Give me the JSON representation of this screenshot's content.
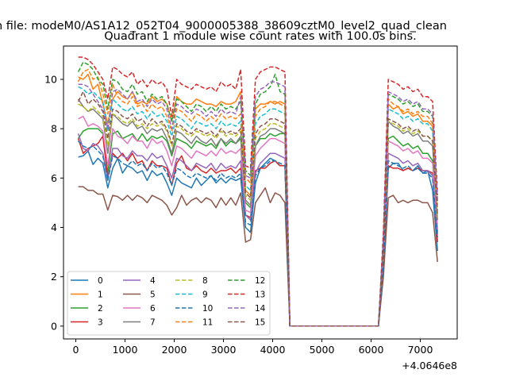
{
  "chart_data": {
    "type": "line",
    "suptitle": "n file: modeM0/AS1A12_052T04_9000005388_38609cztM0_level2_quad_clean",
    "title": "Quadrant 1 module wise count rates with 100.0s bins.",
    "x_offset_label": "+4.0646e8",
    "xlim": [
      -250,
      7750
    ],
    "ylim": [
      -0.52,
      11.35
    ],
    "x_ticks": [
      0,
      1000,
      2000,
      3000,
      4000,
      5000,
      6000,
      7000
    ],
    "x_tick_labels": [
      "0",
      "1000",
      "2000",
      "3000",
      "4000",
      "5000",
      "6000",
      "7000"
    ],
    "y_ticks": [
      0,
      2,
      4,
      6,
      8,
      10
    ],
    "y_tick_labels": [
      "0",
      "2",
      "4",
      "6",
      "8",
      "10"
    ],
    "x": [
      50,
      150,
      250,
      350,
      450,
      550,
      650,
      750,
      850,
      950,
      1050,
      1150,
      1250,
      1350,
      1450,
      1550,
      1650,
      1750,
      1850,
      1950,
      2050,
      2150,
      2250,
      2350,
      2450,
      2550,
      2650,
      2750,
      2850,
      2950,
      3050,
      3150,
      3250,
      3350,
      3450,
      3550,
      3650,
      3750,
      3850,
      3950,
      4050,
      4150,
      4250,
      4350,
      6150,
      6250,
      6350,
      6450,
      6550,
      6650,
      6750,
      6850,
      6950,
      7050,
      7150,
      7250,
      7350
    ],
    "legend": {
      "location": "lower left",
      "columns": 4
    },
    "series": [
      {
        "name": "0",
        "color": "#1f77b4",
        "style": "solid",
        "values": [
          6.85,
          6.9,
          7.1,
          6.55,
          6.8,
          6.6,
          5.6,
          6.4,
          6.8,
          6.2,
          6.5,
          6.4,
          6.2,
          6.3,
          5.9,
          6.3,
          6.1,
          6.2,
          5.8,
          5.3,
          6.0,
          5.8,
          5.7,
          5.6,
          6.0,
          5.7,
          5.9,
          6.1,
          5.8,
          6.0,
          5.8,
          6.0,
          5.9,
          6.0,
          4.0,
          3.8,
          5.8,
          6.4,
          6.6,
          6.8,
          6.7,
          6.5,
          6.5,
          0.0,
          0.0,
          2.4,
          6.4,
          6.6,
          6.6,
          6.3,
          6.4,
          6.3,
          6.5,
          6.2,
          6.3,
          5.5,
          3.05
        ]
      },
      {
        "name": "1",
        "color": "#ff7f0e",
        "style": "solid",
        "values": [
          10.1,
          10.0,
          10.2,
          9.6,
          9.8,
          9.0,
          8.2,
          9.2,
          9.5,
          9.3,
          9.2,
          9.5,
          9.0,
          9.1,
          9.0,
          9.3,
          9.1,
          9.2,
          9.0,
          8.3,
          9.3,
          9.1,
          9.0,
          9.0,
          9.2,
          9.1,
          9.0,
          9.0,
          8.9,
          9.1,
          9.0,
          9.0,
          9.1,
          9.5,
          5.5,
          5.3,
          8.8,
          9.0,
          9.0,
          9.1,
          9.0,
          9.1,
          9.0,
          0.0,
          0.0,
          3.0,
          9.0,
          8.8,
          8.9,
          8.6,
          8.7,
          8.5,
          8.6,
          8.3,
          8.3,
          8.1,
          3.9
        ]
      },
      {
        "name": "2",
        "color": "#2ca02c",
        "style": "solid",
        "values": [
          7.6,
          7.9,
          8.0,
          8.0,
          8.0,
          7.8,
          6.2,
          7.8,
          7.9,
          7.6,
          7.7,
          7.8,
          7.5,
          7.8,
          7.5,
          7.7,
          7.6,
          7.7,
          7.5,
          6.9,
          7.6,
          7.5,
          7.4,
          7.2,
          7.5,
          7.4,
          7.3,
          7.4,
          7.2,
          7.6,
          7.3,
          7.5,
          7.4,
          7.6,
          5.0,
          4.8,
          7.3,
          7.6,
          7.6,
          7.8,
          7.7,
          7.8,
          7.8,
          0.0,
          0.0,
          2.9,
          7.6,
          7.7,
          7.5,
          7.3,
          7.4,
          7.2,
          7.3,
          7.0,
          7.0,
          6.7,
          3.8
        ]
      },
      {
        "name": "3",
        "color": "#d62728",
        "style": "solid",
        "values": [
          7.6,
          7.0,
          7.2,
          7.3,
          7.4,
          7.7,
          6.0,
          7.0,
          6.8,
          7.0,
          6.7,
          7.0,
          6.6,
          6.7,
          6.3,
          6.7,
          6.5,
          6.5,
          6.4,
          5.7,
          6.6,
          6.9,
          6.4,
          6.3,
          6.5,
          6.3,
          6.2,
          6.4,
          6.2,
          6.3,
          6.3,
          6.4,
          6.2,
          6.4,
          4.5,
          4.4,
          6.3,
          6.4,
          6.4,
          6.6,
          6.7,
          6.5,
          6.5,
          0.0,
          0.0,
          2.5,
          6.5,
          6.4,
          6.4,
          6.3,
          6.4,
          6.3,
          6.4,
          6.3,
          6.3,
          6.2,
          3.4
        ]
      },
      {
        "name": "4",
        "color": "#9467bd",
        "style": "solid",
        "values": [
          7.8,
          7.2,
          7.1,
          7.4,
          7.3,
          7.0,
          5.9,
          7.2,
          7.2,
          6.9,
          6.8,
          7.1,
          6.9,
          6.9,
          6.7,
          7.0,
          6.8,
          6.9,
          6.5,
          6.0,
          6.8,
          6.7,
          6.5,
          6.3,
          6.6,
          6.5,
          6.4,
          6.6,
          6.3,
          6.6,
          6.4,
          6.5,
          6.4,
          6.7,
          4.5,
          4.3,
          6.2,
          6.6,
          6.8,
          7.0,
          7.0,
          6.9,
          6.8,
          0.0,
          0.0,
          2.7,
          7.0,
          6.9,
          6.8,
          6.6,
          6.7,
          6.5,
          6.6,
          6.3,
          6.3,
          6.1,
          3.7
        ]
      },
      {
        "name": "5",
        "color": "#8c564b",
        "style": "solid",
        "values": [
          5.65,
          5.65,
          5.5,
          5.5,
          5.35,
          5.35,
          4.7,
          5.3,
          5.25,
          5.1,
          5.3,
          5.1,
          5.3,
          5.2,
          5.0,
          5.3,
          5.2,
          5.1,
          4.9,
          4.5,
          4.8,
          5.3,
          4.9,
          5.1,
          5.2,
          5.0,
          5.2,
          5.1,
          4.8,
          5.2,
          4.9,
          5.2,
          4.9,
          5.4,
          3.4,
          3.5,
          5.0,
          5.3,
          5.6,
          5.0,
          5.4,
          5.3,
          5.0,
          0.0,
          0.0,
          2.0,
          5.2,
          5.3,
          5.0,
          5.1,
          5.0,
          5.1,
          5.1,
          5.0,
          5.0,
          4.6,
          2.6
        ]
      },
      {
        "name": "6",
        "color": "#e377c2",
        "style": "solid",
        "values": [
          8.4,
          8.5,
          8.1,
          8.2,
          8.1,
          7.9,
          6.5,
          8.0,
          7.7,
          7.6,
          7.4,
          7.7,
          7.5,
          7.5,
          7.2,
          7.6,
          7.4,
          7.5,
          7.1,
          6.5,
          7.3,
          7.2,
          7.0,
          6.8,
          7.1,
          7.0,
          6.9,
          7.1,
          6.9,
          7.2,
          7.0,
          7.1,
          7.0,
          7.2,
          4.7,
          4.6,
          6.9,
          7.2,
          7.4,
          7.6,
          7.6,
          7.5,
          7.4,
          0.0,
          0.0,
          2.8,
          7.5,
          7.4,
          7.3,
          7.1,
          7.2,
          7.0,
          7.1,
          6.8,
          6.8,
          6.6,
          3.9
        ]
      },
      {
        "name": "7",
        "color": "#7f7f7f",
        "style": "solid",
        "values": [
          9.2,
          8.9,
          8.7,
          8.8,
          8.6,
          8.4,
          7.0,
          8.6,
          8.4,
          8.2,
          8.1,
          8.3,
          8.0,
          8.1,
          7.8,
          8.0,
          7.9,
          8.0,
          7.6,
          7.0,
          7.9,
          7.8,
          7.6,
          7.4,
          7.7,
          7.5,
          7.4,
          7.6,
          7.3,
          7.6,
          7.4,
          7.6,
          7.4,
          7.7,
          5.1,
          4.9,
          7.3,
          7.7,
          7.8,
          8.0,
          8.0,
          7.9,
          7.8,
          0.0,
          0.0,
          3.0,
          8.3,
          8.1,
          8.0,
          7.8,
          7.9,
          7.7,
          7.8,
          7.5,
          7.5,
          7.3,
          4.3
        ]
      },
      {
        "name": "8",
        "color": "#bcbd22",
        "style": "dashed",
        "values": [
          9.0,
          8.9,
          8.7,
          8.9,
          8.7,
          8.5,
          7.3,
          8.6,
          8.5,
          8.3,
          8.2,
          8.4,
          8.1,
          8.2,
          8.0,
          8.2,
          8.1,
          8.2,
          7.9,
          7.3,
          8.1,
          8.0,
          7.8,
          7.7,
          7.9,
          7.8,
          7.7,
          7.8,
          7.6,
          7.9,
          7.7,
          7.8,
          7.7,
          7.9,
          5.3,
          5.1,
          7.6,
          7.9,
          8.0,
          8.2,
          8.2,
          8.1,
          8.0,
          0.0,
          0.0,
          3.1,
          8.3,
          8.2,
          8.1,
          7.9,
          8.0,
          7.8,
          7.9,
          7.7,
          7.7,
          7.5,
          4.4
        ]
      },
      {
        "name": "9",
        "color": "#17becf",
        "style": "dashed",
        "values": [
          9.7,
          9.6,
          9.4,
          9.5,
          9.3,
          9.1,
          7.9,
          9.2,
          9.0,
          8.8,
          8.7,
          8.9,
          8.6,
          8.7,
          8.4,
          8.7,
          8.5,
          8.6,
          8.3,
          7.7,
          8.5,
          8.4,
          8.2,
          8.0,
          8.3,
          8.2,
          8.1,
          8.2,
          8.0,
          8.3,
          8.1,
          8.2,
          8.1,
          8.3,
          5.7,
          5.5,
          8.2,
          8.5,
          8.6,
          8.8,
          8.8,
          8.7,
          8.6,
          0.0,
          0.0,
          3.3,
          8.8,
          8.7,
          8.6,
          8.4,
          8.5,
          8.3,
          8.4,
          8.2,
          8.2,
          7.9,
          4.7
        ]
      },
      {
        "name": "10",
        "color": "#1f77b4",
        "style": "dashed",
        "values": [
          7.5,
          7.3,
          7.2,
          7.3,
          7.1,
          6.9,
          5.9,
          6.9,
          6.8,
          6.6,
          6.5,
          6.7,
          6.5,
          6.6,
          6.3,
          6.6,
          6.4,
          6.5,
          6.2,
          5.7,
          6.4,
          6.3,
          6.1,
          6.0,
          6.2,
          6.1,
          6.0,
          6.1,
          5.9,
          6.2,
          6.0,
          6.1,
          6.0,
          6.2,
          4.2,
          4.1,
          6.1,
          6.4,
          6.5,
          6.7,
          6.7,
          6.6,
          6.5,
          0.0,
          0.0,
          2.5,
          6.7,
          6.6,
          6.5,
          6.4,
          6.5,
          6.3,
          6.4,
          6.2,
          6.2,
          6.0,
          3.6
        ]
      },
      {
        "name": "11",
        "color": "#ff7f0e",
        "style": "dashed",
        "values": [
          9.9,
          10.3,
          10.4,
          10.0,
          10.1,
          9.4,
          8.6,
          9.8,
          9.3,
          9.1,
          9.0,
          9.3,
          8.9,
          9.0,
          8.7,
          9.0,
          8.8,
          8.9,
          8.5,
          7.9,
          8.8,
          8.7,
          8.5,
          8.3,
          8.6,
          8.5,
          8.3,
          8.5,
          8.3,
          8.6,
          8.4,
          8.5,
          8.4,
          8.6,
          6.0,
          5.8,
          8.5,
          8.8,
          8.9,
          9.1,
          9.1,
          9.0,
          8.9,
          0.0,
          0.0,
          3.4,
          9.2,
          9.0,
          8.9,
          8.7,
          8.8,
          8.6,
          8.7,
          8.5,
          8.5,
          8.2,
          4.9
        ]
      },
      {
        "name": "12",
        "color": "#2ca02c",
        "style": "dashed",
        "values": [
          10.3,
          10.7,
          10.6,
          10.4,
          10.0,
          9.8,
          8.8,
          10.0,
          9.9,
          9.6,
          9.5,
          9.8,
          9.4,
          9.5,
          9.1,
          9.4,
          9.2,
          9.3,
          9.0,
          8.3,
          9.2,
          9.1,
          8.9,
          8.7,
          9.0,
          8.9,
          8.7,
          8.9,
          8.7,
          9.0,
          8.8,
          8.9,
          8.8,
          9.1,
          6.3,
          6.1,
          9.0,
          9.4,
          9.5,
          9.7,
          10.2,
          9.5,
          9.4,
          0.0,
          0.0,
          3.6,
          9.4,
          9.3,
          9.2,
          9.0,
          9.1,
          8.9,
          9.0,
          8.7,
          8.7,
          8.5,
          5.0
        ]
      },
      {
        "name": "13",
        "color": "#d62728",
        "style": "dashed",
        "values": [
          10.9,
          10.9,
          10.8,
          10.6,
          10.3,
          10.0,
          9.2,
          10.5,
          10.4,
          10.2,
          10.1,
          10.3,
          9.8,
          10.0,
          9.7,
          10.0,
          9.8,
          9.9,
          9.6,
          8.5,
          10.0,
          9.8,
          9.7,
          9.6,
          9.8,
          9.7,
          9.6,
          9.7,
          9.5,
          9.9,
          9.7,
          9.8,
          9.6,
          10.4,
          6.5,
          6.4,
          10.0,
          10.3,
          10.4,
          10.5,
          10.5,
          10.4,
          10.3,
          0.0,
          0.0,
          3.8,
          10.0,
          9.9,
          9.8,
          9.6,
          9.7,
          9.5,
          9.6,
          9.3,
          9.3,
          9.1,
          5.3
        ]
      },
      {
        "name": "14",
        "color": "#9467bd",
        "style": "dashed",
        "values": [
          9.8,
          9.8,
          9.7,
          9.4,
          9.1,
          8.8,
          8.0,
          9.5,
          9.6,
          9.4,
          9.2,
          9.5,
          9.1,
          9.2,
          8.9,
          9.2,
          9.0,
          9.1,
          8.8,
          8.0,
          9.0,
          8.9,
          8.7,
          8.6,
          8.8,
          8.7,
          8.5,
          8.7,
          8.5,
          8.8,
          8.6,
          8.7,
          8.6,
          9.3,
          6.1,
          6.0,
          9.3,
          9.6,
          9.7,
          9.9,
          9.9,
          9.8,
          9.7,
          0.0,
          0.0,
          3.5,
          9.5,
          9.4,
          9.3,
          9.1,
          9.2,
          9.0,
          9.1,
          8.8,
          8.8,
          8.6,
          5.1
        ]
      },
      {
        "name": "15",
        "color": "#8c564b",
        "style": "dashed",
        "values": [
          9.1,
          9.5,
          9.0,
          9.2,
          9.0,
          8.7,
          7.6,
          8.8,
          8.7,
          8.5,
          8.4,
          8.6,
          8.3,
          8.4,
          8.1,
          8.4,
          8.2,
          8.3,
          8.0,
          7.4,
          8.2,
          8.1,
          7.9,
          7.8,
          8.0,
          7.9,
          7.8,
          7.9,
          7.7,
          8.0,
          7.8,
          7.9,
          7.8,
          8.0,
          5.4,
          5.2,
          7.8,
          8.1,
          8.2,
          8.4,
          8.4,
          8.3,
          8.2,
          0.0,
          0.0,
          3.1,
          8.4,
          8.3,
          8.2,
          8.0,
          8.1,
          7.9,
          8.0,
          7.7,
          7.7,
          7.5,
          4.5
        ]
      }
    ]
  }
}
